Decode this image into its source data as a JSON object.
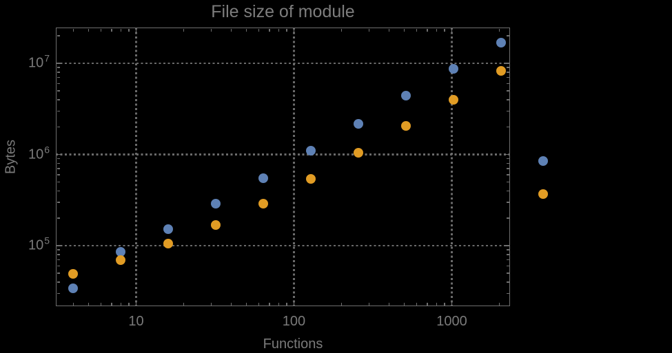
{
  "colors": {
    "background": "#000000",
    "frame": "#6f6f6f",
    "gridline": "#6a6a6a",
    "text": "#7a7a7a",
    "title_text": "#7d7d7d",
    "series_blue": "#5e81b5",
    "series_orange": "#e19c24"
  },
  "chart_data": {
    "type": "scatter",
    "title": "File size of module",
    "xlabel": "Functions",
    "ylabel": "Bytes",
    "x_scale": "log",
    "y_scale": "log",
    "xlim": [
      3.1,
      2340
    ],
    "ylim": [
      21700,
      24700000
    ],
    "grid": "dotted gridlines at decade ticks, frame on all four sides, no legend",
    "x_ticks": [
      {
        "value": 10,
        "label": "10"
      },
      {
        "value": 100,
        "label": "100"
      },
      {
        "value": 1000,
        "label": "1000"
      }
    ],
    "y_ticks": [
      {
        "value": 100000,
        "base": "10",
        "exp": "5"
      },
      {
        "value": 1000000,
        "base": "10",
        "exp": "6"
      },
      {
        "value": 10000000,
        "base": "10",
        "exp": "7"
      }
    ],
    "x": [
      4,
      8,
      16,
      32,
      64,
      128,
      256,
      512,
      1024,
      2048,
      3800
    ],
    "series": [
      {
        "name": "blue",
        "color": "#5e81b5",
        "values": [
          34000,
          85000,
          152000,
          290000,
          554000,
          1100000,
          2170000,
          4400000,
          8700000,
          17000000,
          850000
        ]
      },
      {
        "name": "orange",
        "color": "#e19c24",
        "values": [
          49000,
          70000,
          105000,
          168000,
          290000,
          540000,
          1040000,
          2060000,
          4000000,
          8300000,
          370000
        ]
      }
    ]
  }
}
